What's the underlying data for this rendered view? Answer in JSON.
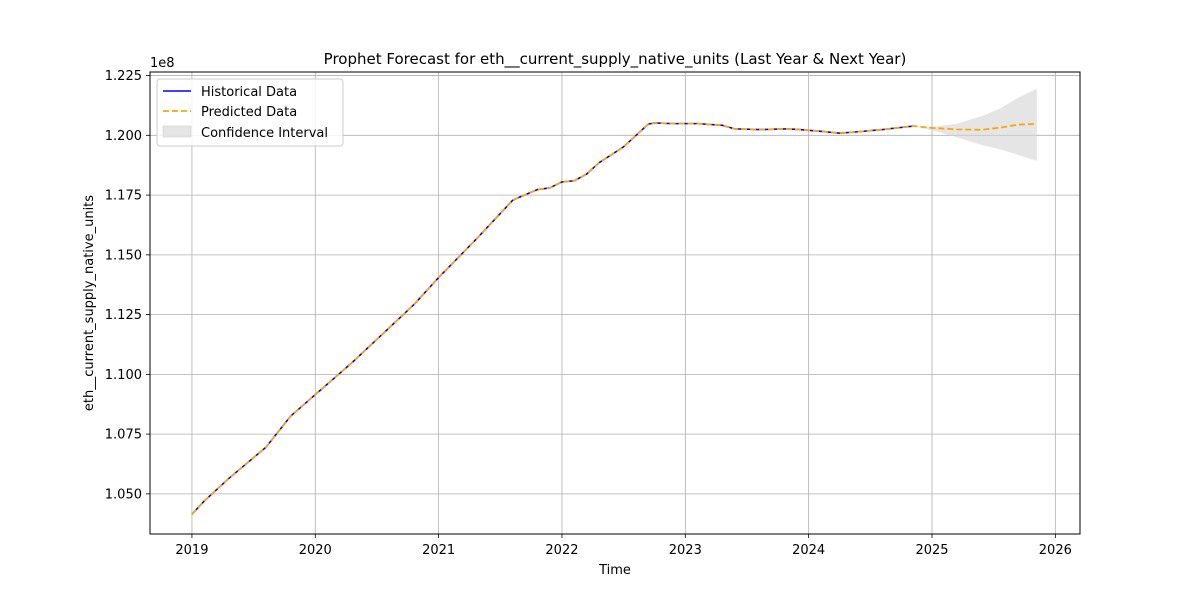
{
  "chart_data": {
    "type": "line",
    "title": "Prophet Forecast for eth__current_supply_native_units (Last Year & Next Year)",
    "xlabel": "Time",
    "ylabel": "eth__current_supply_native_units",
    "y_offset_label": "1e8",
    "x_tick_labels": [
      "2019",
      "2020",
      "2021",
      "2022",
      "2023",
      "2024",
      "2025",
      "2026"
    ],
    "y_ticks": [
      1.05,
      1.075,
      1.1,
      1.125,
      1.15,
      1.175,
      1.2,
      1.225
    ],
    "y_tick_labels": [
      "1.050",
      "1.075",
      "1.100",
      "1.125",
      "1.150",
      "1.175",
      "1.200",
      "1.225"
    ],
    "xlim": [
      2018.66,
      2026.2
    ],
    "ylim": [
      1.0332,
      1.2265
    ],
    "grid": true,
    "legend_position": "top-left",
    "colors": {
      "historical": "#0000ff",
      "predicted": "#ffa500",
      "confidence": "#d3d3d3"
    },
    "series": [
      {
        "name": "Historical Data",
        "style": "solid",
        "x": [
          2019.0,
          2019.1,
          2019.3,
          2019.6,
          2019.8,
          2020.0,
          2020.3,
          2020.6,
          2020.8,
          2021.0,
          2021.3,
          2021.6,
          2021.65,
          2021.8,
          2021.9,
          2022.0,
          2022.1,
          2022.2,
          2022.3,
          2022.5,
          2022.7,
          2022.75,
          2022.9,
          2023.1,
          2023.3,
          2023.4,
          2023.6,
          2023.8,
          2023.9,
          2024.1,
          2024.25,
          2024.4,
          2024.6,
          2024.85
        ],
        "y": [
          1.0415,
          1.047,
          1.0565,
          1.0695,
          1.0825,
          1.0915,
          1.105,
          1.1195,
          1.1292,
          1.1405,
          1.1563,
          1.1728,
          1.174,
          1.1773,
          1.178,
          1.1805,
          1.181,
          1.1838,
          1.1885,
          1.1952,
          1.2047,
          1.2052,
          1.2049,
          1.2049,
          1.2042,
          1.2027,
          1.2024,
          1.2027,
          1.2025,
          1.2017,
          1.2009,
          1.2015,
          1.2024,
          1.2039
        ]
      },
      {
        "name": "Predicted Data",
        "style": "dashed",
        "x": [
          2019.0,
          2019.1,
          2019.3,
          2019.6,
          2019.8,
          2020.0,
          2020.3,
          2020.6,
          2020.8,
          2021.0,
          2021.3,
          2021.6,
          2021.65,
          2021.8,
          2021.9,
          2022.0,
          2022.1,
          2022.2,
          2022.3,
          2022.5,
          2022.7,
          2022.75,
          2022.9,
          2023.1,
          2023.3,
          2023.4,
          2023.6,
          2023.8,
          2023.9,
          2024.1,
          2024.25,
          2024.4,
          2024.6,
          2024.85,
          2025.0,
          2025.2,
          2025.4,
          2025.55,
          2025.7,
          2025.85
        ],
        "y": [
          1.0415,
          1.047,
          1.0565,
          1.0695,
          1.0825,
          1.0915,
          1.105,
          1.1195,
          1.1292,
          1.1405,
          1.1563,
          1.1728,
          1.174,
          1.1773,
          1.178,
          1.1805,
          1.181,
          1.1838,
          1.1885,
          1.1952,
          1.2047,
          1.2052,
          1.2049,
          1.2049,
          1.2042,
          1.2027,
          1.2024,
          1.2027,
          1.2025,
          1.2017,
          1.2009,
          1.2015,
          1.2024,
          1.2039,
          1.2031,
          1.2025,
          1.2023,
          1.2032,
          1.2045,
          1.2048
        ]
      }
    ],
    "confidence_interval": {
      "name": "Confidence Interval",
      "x": [
        2024.85,
        2025.0,
        2025.2,
        2025.4,
        2025.55,
        2025.7,
        2025.85
      ],
      "lower": [
        1.2039,
        1.2022,
        1.1992,
        1.196,
        1.1942,
        1.1918,
        1.1893
      ],
      "upper": [
        1.2039,
        1.2035,
        1.2048,
        1.208,
        1.2112,
        1.2158,
        1.2195
      ]
    }
  }
}
